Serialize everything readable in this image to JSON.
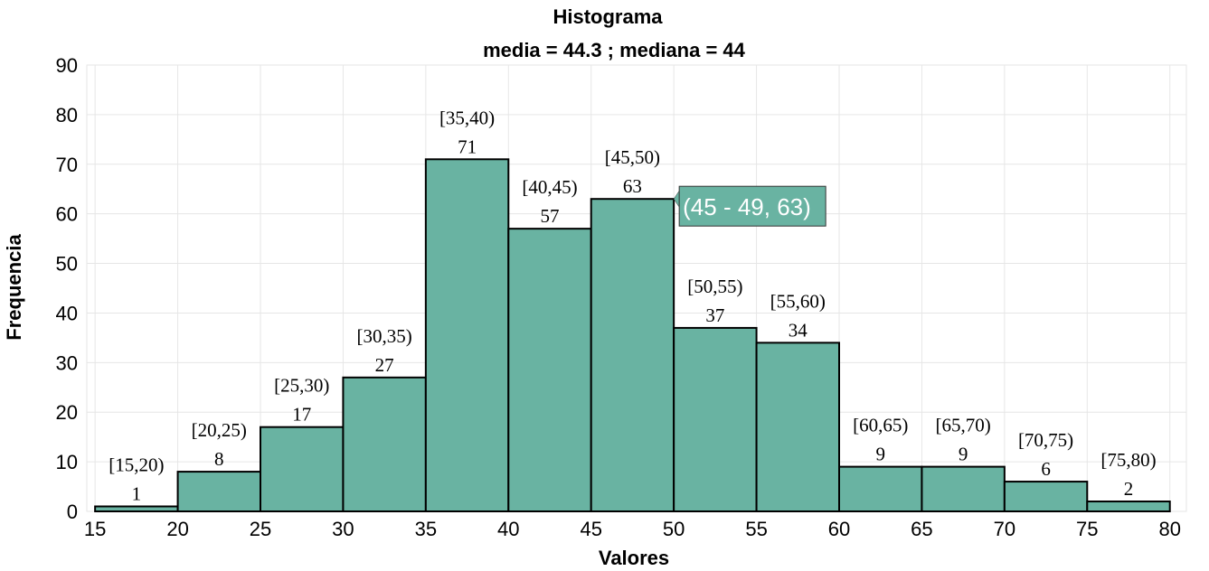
{
  "chart_data": {
    "type": "bar",
    "title": "Histograma",
    "subtitle": "media = 44.3 ; mediana = 44",
    "xlabel": "Valores",
    "ylabel": "Frequencia",
    "xlim": [
      14.5,
      81
    ],
    "ylim": [
      0,
      90
    ],
    "x_ticks": [
      15,
      20,
      25,
      30,
      35,
      40,
      45,
      50,
      55,
      60,
      65,
      70,
      75,
      80
    ],
    "y_ticks": [
      0,
      10,
      20,
      30,
      40,
      50,
      60,
      70,
      80,
      90
    ],
    "grid": true,
    "bar_color": "#69b3a2",
    "bins": [
      {
        "label": "[15,20)",
        "from": 15,
        "to": 20,
        "count": 1
      },
      {
        "label": "[20,25)",
        "from": 20,
        "to": 25,
        "count": 8
      },
      {
        "label": "[25,30)",
        "from": 25,
        "to": 30,
        "count": 17
      },
      {
        "label": "[30,35)",
        "from": 30,
        "to": 35,
        "count": 27
      },
      {
        "label": "[35,40)",
        "from": 35,
        "to": 40,
        "count": 71
      },
      {
        "label": "[40,45)",
        "from": 40,
        "to": 45,
        "count": 57
      },
      {
        "label": "[45,50)",
        "from": 45,
        "to": 50,
        "count": 63
      },
      {
        "label": "[50,55)",
        "from": 50,
        "to": 55,
        "count": 37
      },
      {
        "label": "[55,60)",
        "from": 55,
        "to": 60,
        "count": 34
      },
      {
        "label": "[60,65)",
        "from": 60,
        "to": 65,
        "count": 9
      },
      {
        "label": "[65,70)",
        "from": 65,
        "to": 70,
        "count": 9
      },
      {
        "label": "[70,75)",
        "from": 70,
        "to": 75,
        "count": 6
      },
      {
        "label": "[75,80)",
        "from": 75,
        "to": 80,
        "count": 2
      }
    ],
    "tooltip": {
      "text": "(45 - 49, 63)",
      "bin_index": 6,
      "color": "#69b3a2"
    }
  }
}
